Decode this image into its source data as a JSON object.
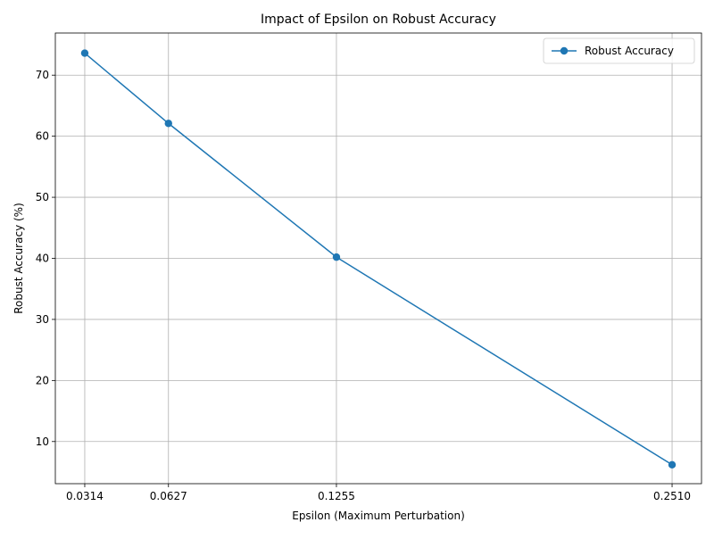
{
  "chart_data": {
    "type": "line",
    "title": "Impact of Epsilon on Robust Accuracy",
    "xlabel": "Epsilon (Maximum Perturbation)",
    "ylabel": "Robust Accuracy (%)",
    "x_ticks": [
      0.0314,
      0.0627,
      0.1255,
      0.251
    ],
    "x_tick_labels": [
      "0.0314",
      "0.0627",
      "0.1255",
      "0.2510"
    ],
    "y_ticks": [
      10,
      20,
      30,
      40,
      50,
      60,
      70
    ],
    "y_tick_labels": [
      "10",
      "20",
      "30",
      "40",
      "50",
      "60",
      "70"
    ],
    "xlim": [
      0.0204,
      0.262
    ],
    "ylim": [
      3.1,
      76.9
    ],
    "grid": true,
    "legend_position": "top-right",
    "series": [
      {
        "name": "Robust Accuracy",
        "color": "#1f77b4",
        "marker": "circle",
        "x": [
          0.0314,
          0.0627,
          0.1255,
          0.251
        ],
        "y": [
          73.6,
          62.1,
          40.2,
          6.2
        ]
      }
    ]
  }
}
